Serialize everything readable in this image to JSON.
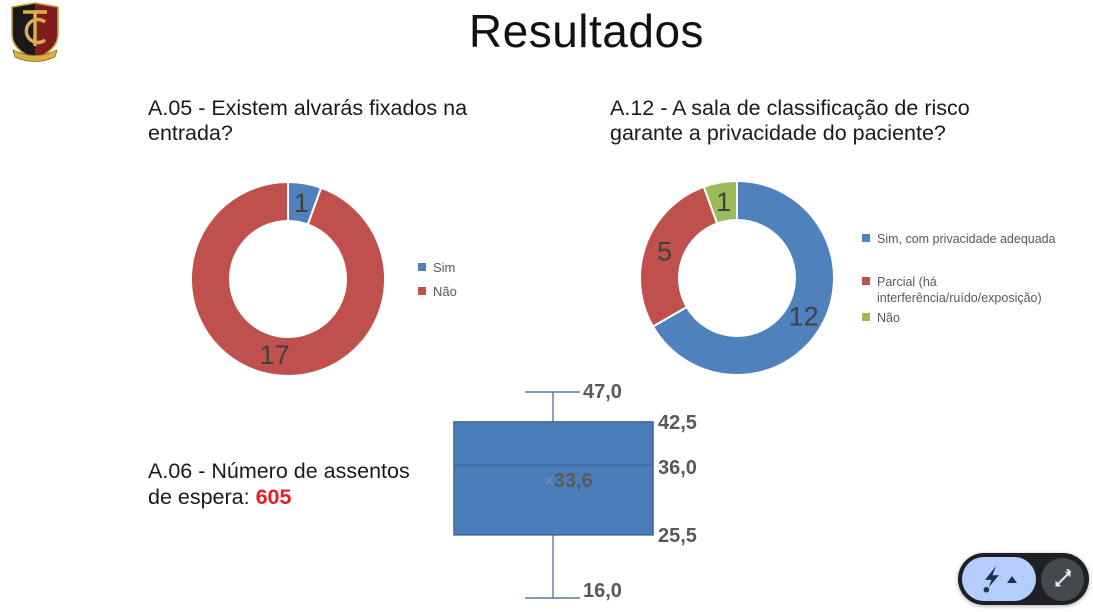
{
  "page": {
    "title": "Resultados"
  },
  "logo": {
    "icon": "tce-crest-shield",
    "colors": {
      "left_half": "#191919",
      "right_half": "#7e1c20",
      "gold": "#d9b04a"
    }
  },
  "chart_data": [
    {
      "id": "a05",
      "type": "pie",
      "donut": true,
      "title": "A.05 -  Existem alvarás fixados na entrada?",
      "labels": [
        "Sim",
        "Não"
      ],
      "values": [
        1,
        17
      ],
      "colors": [
        "#4f81bd",
        "#c0504d"
      ],
      "legend_position": "right",
      "start_angle_deg": 0,
      "data_label_color": "#404040"
    },
    {
      "id": "a12",
      "type": "pie",
      "donut": true,
      "title": "A.12 -  A sala de classificação de risco garante a privacidade do paciente?",
      "labels": [
        "Sim, com privacidade adequada",
        "Parcial (há interferência/ruído/exposição)",
        "Não"
      ],
      "values": [
        12,
        5,
        1
      ],
      "colors": [
        "#4f81bd",
        "#c0504d",
        "#9bbb59"
      ],
      "legend_position": "right",
      "start_angle_deg": 0,
      "data_label_color": "#404040"
    },
    {
      "id": "a06-boxplot",
      "type": "boxplot",
      "values": {
        "max": 47.0,
        "q3": 42.5,
        "median": 36.0,
        "mean": 33.6,
        "q1": 25.5,
        "min": 16.0
      },
      "display_labels": {
        "max": "47,0",
        "q3": "42,5",
        "median": "36,0",
        "mean": "33,6",
        "q1": "25,5",
        "min": "16,0"
      },
      "colors": {
        "fill": "#4a7ebb",
        "border": "#3d6494",
        "whisker": "#5b7aa5",
        "label": "#595959",
        "mean_mark": "#8a9099"
      }
    }
  ],
  "a06": {
    "line1": "A.06 -  Número de assentos",
    "line2_prefix": "de espera: ",
    "value": "605",
    "value_color": "#ed1c24"
  },
  "player_controls": {
    "pointer_button_icon": "lightning-pointer-icon",
    "menu_indicator_icon": "chevron-up-icon",
    "fullscreen_button_icon": "expand-arrows-icon",
    "pointer_pill_color": "#b5cdfa",
    "bar_color": "#1f2023"
  }
}
